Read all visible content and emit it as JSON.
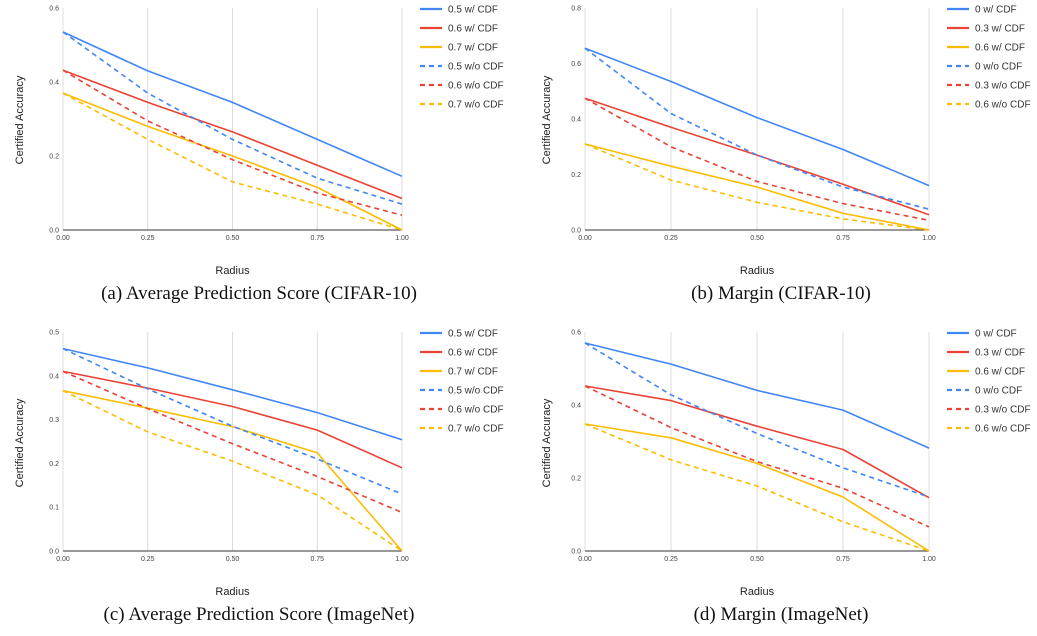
{
  "chart_data": [
    {
      "type": "line",
      "caption": "(a) Average Prediction Score (CIFAR-10)",
      "xlabel": "Radius",
      "ylabel": "Certified Accuracy",
      "x": [
        0.0,
        0.25,
        0.5,
        0.75,
        1.0
      ],
      "x_ticks": [
        "0.00",
        "0.25",
        "0.50",
        "0.75",
        "1.00"
      ],
      "ylim": [
        0,
        0.6
      ],
      "y_ticks": [
        "0.0",
        "0.2",
        "0.4",
        "0.6"
      ],
      "grid": "vertical",
      "legend": "right",
      "series": [
        {
          "name": "0.5 w/ CDF",
          "color": "#4285F4",
          "dash": false,
          "values": [
            0.535,
            0.43,
            0.345,
            0.245,
            0.145
          ]
        },
        {
          "name": "0.6 w/ CDF",
          "color": "#EA4335",
          "dash": false,
          "values": [
            0.432,
            0.345,
            0.265,
            0.175,
            0.085
          ]
        },
        {
          "name": "0.7 w/ CDF",
          "color": "#FBBC04",
          "dash": false,
          "values": [
            0.37,
            0.28,
            0.2,
            0.115,
            0.0
          ]
        },
        {
          "name": "0.5 w/o CDF",
          "color": "#4285F4",
          "dash": true,
          "values": [
            0.535,
            0.37,
            0.245,
            0.14,
            0.07
          ]
        },
        {
          "name": "0.6 w/o CDF",
          "color": "#EA4335",
          "dash": true,
          "values": [
            0.432,
            0.295,
            0.19,
            0.1,
            0.04
          ]
        },
        {
          "name": "0.7 w/o CDF",
          "color": "#FBBC04",
          "dash": true,
          "values": [
            0.37,
            0.245,
            0.13,
            0.07,
            0.0
          ]
        }
      ]
    },
    {
      "type": "line",
      "caption": "(b) Margin (CIFAR-10)",
      "xlabel": "Radius",
      "ylabel": "Certified Accuracy",
      "x": [
        0.0,
        0.25,
        0.5,
        0.75,
        1.0
      ],
      "x_ticks": [
        "0.00",
        "0.25",
        "0.50",
        "0.75",
        "1.00"
      ],
      "ylim": [
        0,
        0.8
      ],
      "y_ticks": [
        "0.0",
        "0.2",
        "0.4",
        "0.6",
        "0.8"
      ],
      "grid": "vertical",
      "legend": "right",
      "series": [
        {
          "name": "0 w/ CDF",
          "color": "#4285F4",
          "dash": false,
          "values": [
            0.655,
            0.535,
            0.405,
            0.29,
            0.16
          ]
        },
        {
          "name": "0.3 w/ CDF",
          "color": "#EA4335",
          "dash": false,
          "values": [
            0.475,
            0.37,
            0.27,
            0.165,
            0.055
          ]
        },
        {
          "name": "0.6 w/ CDF",
          "color": "#FBBC04",
          "dash": false,
          "values": [
            0.31,
            0.23,
            0.155,
            0.06,
            0.0
          ]
        },
        {
          "name": "0 w/o CDF",
          "color": "#4285F4",
          "dash": true,
          "values": [
            0.655,
            0.42,
            0.27,
            0.155,
            0.075
          ]
        },
        {
          "name": "0.3 w/o CDF",
          "color": "#EA4335",
          "dash": true,
          "values": [
            0.475,
            0.3,
            0.175,
            0.095,
            0.035
          ]
        },
        {
          "name": "0.6 w/o CDF",
          "color": "#FBBC04",
          "dash": true,
          "values": [
            0.31,
            0.18,
            0.1,
            0.04,
            0.0
          ]
        }
      ]
    },
    {
      "type": "line",
      "caption": "(c) Average Prediction Score (ImageNet)",
      "xlabel": "Radius",
      "ylabel": "Certified Accuracy",
      "x": [
        0.0,
        0.25,
        0.5,
        0.75,
        1.0
      ],
      "x_ticks": [
        "0.00",
        "0.25",
        "0.50",
        "0.75",
        "1.00"
      ],
      "ylim": [
        0,
        0.5
      ],
      "y_ticks": [
        "0.0",
        "0.1",
        "0.2",
        "0.3",
        "0.4",
        "0.5"
      ],
      "grid": "vertical",
      "legend": "right",
      "series": [
        {
          "name": "0.5 w/ CDF",
          "color": "#4285F4",
          "dash": false,
          "values": [
            0.462,
            0.418,
            0.368,
            0.316,
            0.254
          ]
        },
        {
          "name": "0.6 w/ CDF",
          "color": "#EA4335",
          "dash": false,
          "values": [
            0.41,
            0.372,
            0.33,
            0.276,
            0.19
          ]
        },
        {
          "name": "0.7 w/ CDF",
          "color": "#FBBC04",
          "dash": false,
          "values": [
            0.366,
            0.326,
            0.284,
            0.224,
            0.0
          ]
        },
        {
          "name": "0.5 w/o CDF",
          "color": "#4285F4",
          "dash": true,
          "values": [
            0.462,
            0.37,
            0.285,
            0.21,
            0.13
          ]
        },
        {
          "name": "0.6 w/o CDF",
          "color": "#EA4335",
          "dash": true,
          "values": [
            0.41,
            0.325,
            0.245,
            0.17,
            0.088
          ]
        },
        {
          "name": "0.7 w/o CDF",
          "color": "#FBBC04",
          "dash": true,
          "values": [
            0.366,
            0.272,
            0.205,
            0.128,
            0.0
          ]
        }
      ]
    },
    {
      "type": "line",
      "caption": "(d) Margin (ImageNet)",
      "xlabel": "Radius",
      "ylabel": "Certified Accuracy",
      "x": [
        0.0,
        0.25,
        0.5,
        0.75,
        1.0
      ],
      "x_ticks": [
        "0.00",
        "0.25",
        "0.50",
        "0.75",
        "1.00"
      ],
      "ylim": [
        0,
        0.6
      ],
      "y_ticks": [
        "0.0",
        "0.2",
        "0.4",
        "0.6"
      ],
      "grid": "vertical",
      "legend": "right",
      "series": [
        {
          "name": "0 w/ CDF",
          "color": "#4285F4",
          "dash": false,
          "values": [
            0.57,
            0.512,
            0.44,
            0.386,
            0.282
          ]
        },
        {
          "name": "0.3 w/ CDF",
          "color": "#EA4335",
          "dash": false,
          "values": [
            0.452,
            0.412,
            0.342,
            0.278,
            0.146
          ]
        },
        {
          "name": "0.6 w/ CDF",
          "color": "#FBBC04",
          "dash": false,
          "values": [
            0.348,
            0.31,
            0.24,
            0.148,
            0.0
          ]
        },
        {
          "name": "0 w/o CDF",
          "color": "#4285F4",
          "dash": true,
          "values": [
            0.57,
            0.428,
            0.322,
            0.228,
            0.148
          ]
        },
        {
          "name": "0.3 w/o CDF",
          "color": "#EA4335",
          "dash": true,
          "values": [
            0.452,
            0.338,
            0.245,
            0.172,
            0.066
          ]
        },
        {
          "name": "0.6 w/o CDF",
          "color": "#FBBC04",
          "dash": true,
          "values": [
            0.348,
            0.25,
            0.178,
            0.08,
            0.0
          ]
        }
      ]
    }
  ]
}
